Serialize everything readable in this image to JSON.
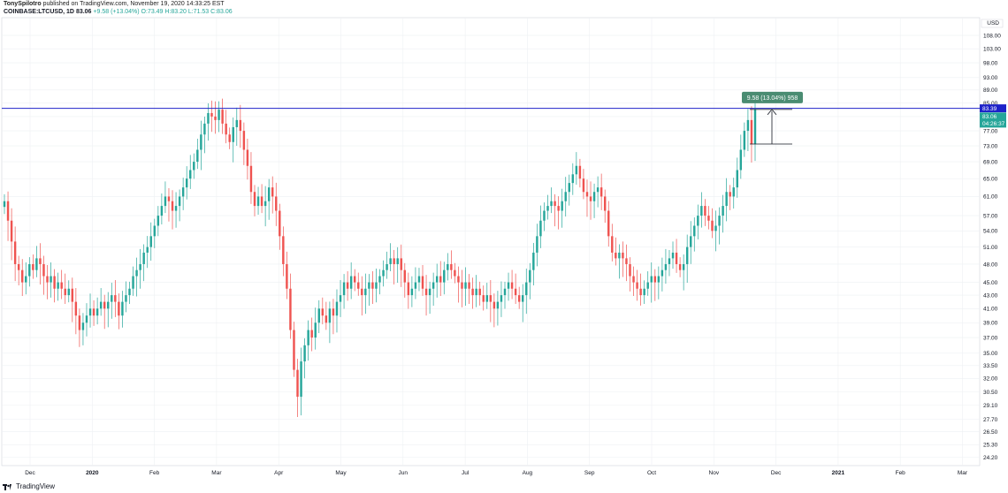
{
  "header": {
    "author": "TonySpilotro",
    "published": "published on TradingView.com, November 19, 2020 14:33:25 EST",
    "symbol_line": "COINBASE:LTCUSD, 1D",
    "price": "83.06",
    "change": "+9.58 (+13.04%)",
    "ohlc": "O:73.49 H:83.20 L:71.53 C:83.06"
  },
  "footer": {
    "brand": "TradingView"
  },
  "colors": {
    "up": "#26a69a",
    "down": "#ef5350",
    "level": "#1e22c9",
    "measure": "#4a8c72",
    "grid": "#eef0f3"
  },
  "chart_data": {
    "type": "candlestick",
    "currency": "USD",
    "yticks": [
      24.2,
      25.3,
      26.5,
      27.7,
      29.1,
      30.5,
      32.0,
      33.5,
      35.0,
      37.0,
      39.0,
      41.0,
      43.0,
      45.0,
      48.0,
      51.0,
      54.0,
      57.0,
      61.0,
      65.0,
      69.0,
      73.0,
      77.0,
      81.0,
      85.0,
      89.0,
      93.0,
      98.0,
      103.0,
      108.0
    ],
    "ylim": [
      23.5,
      115
    ],
    "log_scale": true,
    "x_labels": [
      "Dec",
      "2020",
      "Feb",
      "Mar",
      "Apr",
      "May",
      "Jun",
      "Jul",
      "Aug",
      "Sep",
      "Oct",
      "Nov",
      "Dec",
      "2021",
      "Feb",
      "Mar"
    ],
    "horizontal_level": 83.39,
    "price_tags": [
      {
        "text": "83.39",
        "kind": "level"
      },
      {
        "text": "83.06",
        "kind": "price"
      },
      {
        "text": "04:26:37",
        "kind": "timer"
      }
    ],
    "measurement": {
      "label": "9.58 (13.04%) 958",
      "from": 73.49,
      "to": 83.06
    },
    "closes": [
      60,
      56,
      52,
      48,
      47,
      45,
      46,
      48,
      47,
      49,
      48,
      46,
      45,
      46,
      44,
      45,
      44,
      43,
      44,
      42,
      40,
      38,
      39,
      40,
      41,
      40,
      41,
      42,
      41,
      42,
      43,
      42,
      40,
      42,
      43,
      44,
      46,
      47,
      48,
      50,
      51,
      53,
      55,
      57,
      59,
      61,
      60,
      58,
      59,
      61,
      63,
      65,
      67,
      69,
      72,
      76,
      79,
      82,
      81,
      80,
      83,
      79,
      76,
      74,
      78,
      80,
      77,
      72,
      68,
      62,
      59,
      61,
      59,
      60,
      63,
      61,
      58,
      53,
      48,
      44,
      38,
      33,
      30,
      34,
      36,
      38,
      37,
      39,
      41,
      40,
      39,
      41,
      40,
      42,
      43,
      45,
      44,
      46,
      45,
      44,
      43,
      44,
      45,
      44,
      45,
      46,
      47,
      48,
      49,
      48,
      49,
      47,
      45,
      43,
      44,
      45,
      46,
      44,
      43,
      44,
      45,
      46,
      45,
      47,
      48,
      47,
      46,
      45,
      44,
      45,
      44,
      43,
      44,
      43,
      42,
      43,
      42,
      41,
      42,
      43,
      44,
      45,
      44,
      43,
      42,
      43,
      45,
      47,
      50,
      53,
      56,
      58,
      59,
      60,
      59,
      58,
      60,
      62,
      64,
      66,
      68,
      65,
      62,
      61,
      60,
      62,
      63,
      61,
      58,
      53,
      50,
      49,
      50,
      49,
      48,
      46,
      45,
      44,
      43,
      44,
      45,
      46,
      45,
      46,
      47,
      48,
      49,
      50,
      48,
      47,
      48,
      51,
      53,
      55,
      57,
      59,
      57,
      56,
      54,
      55,
      57,
      59,
      62,
      61,
      63,
      67,
      72,
      77,
      80,
      73.49,
      83.06
    ]
  }
}
